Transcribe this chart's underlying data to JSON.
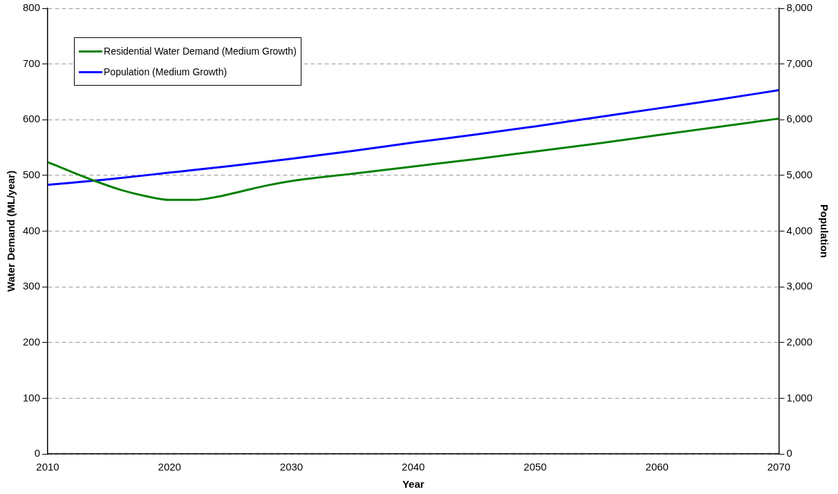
{
  "chart_data": {
    "type": "line",
    "xlabel": "Year",
    "ylabel": "Water Demand (ML/year)",
    "y2label": "Population",
    "x": [
      2010,
      2012,
      2014,
      2016,
      2018,
      2020,
      2022,
      2024,
      2026,
      2028,
      2030,
      2035,
      2040,
      2045,
      2050,
      2055,
      2060,
      2065,
      2070
    ],
    "series": [
      {
        "name": "Residential Water Demand (Medium Growth)",
        "color": "#008000",
        "values": [
          524,
          506,
          489,
          474,
          463,
          456,
          456,
          462,
          472,
          482,
          490,
          503,
          516,
          529,
          543,
          557,
          572,
          587,
          602
        ]
      },
      {
        "name": "Population (Medium Growth)",
        "color": "#0000ff",
        "axis": "y2",
        "x": [
          2010,
          2015,
          2020,
          2025,
          2030,
          2035,
          2040,
          2045,
          2050,
          2055,
          2060,
          2065,
          2070
        ],
        "values": [
          4830,
          4930,
          5050,
          5170,
          5300,
          5440,
          5590,
          5730,
          5880,
          6040,
          6200,
          6360,
          6530
        ]
      }
    ],
    "xlim": [
      2010,
      2070
    ],
    "xticks": [
      2010,
      2020,
      2030,
      2040,
      2050,
      2060,
      2070
    ],
    "ylim": [
      0,
      800
    ],
    "yticks": [
      0,
      100,
      200,
      300,
      400,
      500,
      600,
      700,
      800
    ],
    "y2lim": [
      0,
      8000
    ],
    "y2ticks": [
      0,
      {
        "value": 1000,
        "label": "1,000"
      },
      {
        "value": 2000,
        "label": "2,000"
      },
      {
        "value": 3000,
        "label": "3,000"
      },
      {
        "value": 4000,
        "label": "4,000"
      },
      {
        "value": 5000,
        "label": "5,000"
      },
      {
        "value": 6000,
        "label": "6,000"
      },
      {
        "value": 7000,
        "label": "7,000"
      },
      {
        "value": 8000,
        "label": "8,000"
      }
    ],
    "grid": "y",
    "legend": "top left",
    "marker": "none",
    "line_style": "solid"
  }
}
